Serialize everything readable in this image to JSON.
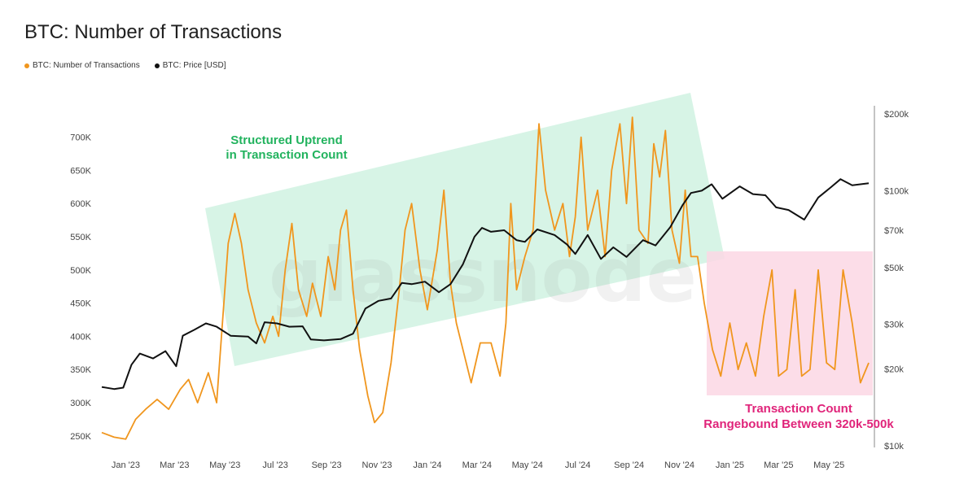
{
  "title": "BTC: Number of Transactions",
  "legend": [
    {
      "label": "BTC: Number of Transactions",
      "color": "#f0961e"
    },
    {
      "label": "BTC: Price [USD]",
      "color": "#111111"
    }
  ],
  "watermark": "glassnode",
  "annotations": {
    "uptrend_line1": "Structured Uptrend",
    "uptrend_line2": "in Transaction Count",
    "range_line1": "Transaction Count",
    "range_line2": "Rangebound Between 320k-500k"
  },
  "chart_data": {
    "type": "line",
    "title": "BTC: Number of Transactions",
    "x_tick_labels": [
      "Jan '23",
      "Mar '23",
      "May '23",
      "Jul '23",
      "Sep '23",
      "Nov '23",
      "Jan '24",
      "Mar '24",
      "May '24",
      "Jul '24",
      "Sep '24",
      "Nov '24",
      "Jan '25",
      "Mar '25",
      "May '25"
    ],
    "y_left_tick_labels": [
      "250K",
      "300K",
      "350K",
      "400K",
      "450K",
      "500K",
      "550K",
      "600K",
      "650K",
      "700K"
    ],
    "y_left_ticks": [
      250000,
      300000,
      350000,
      400000,
      450000,
      500000,
      550000,
      600000,
      650000,
      700000
    ],
    "y_left_range": [
      235000,
      735000
    ],
    "y_right_tick_labels": [
      "$10k",
      "$20k",
      "$30k",
      "$50k",
      "$70k",
      "$100k",
      "$200k"
    ],
    "y_right_ticks": [
      10000,
      20000,
      30000,
      50000,
      70000,
      100000,
      200000
    ],
    "y_right_scale": "log",
    "y_right_range": [
      10000,
      200000
    ],
    "grid": false,
    "legend_position": "top-left",
    "series": [
      {
        "name": "BTC: Number of Transactions",
        "axis": "left",
        "color": "#f0961e",
        "points": [
          [
            "2022-12-10",
            255000
          ],
          [
            "2022-12-25",
            248000
          ],
          [
            "2023-01-08",
            245000
          ],
          [
            "2023-01-20",
            275000
          ],
          [
            "2023-02-01",
            290000
          ],
          [
            "2023-02-15",
            305000
          ],
          [
            "2023-03-01",
            290000
          ],
          [
            "2023-03-15",
            320000
          ],
          [
            "2023-03-25",
            335000
          ],
          [
            "2023-04-05",
            300000
          ],
          [
            "2023-04-18",
            345000
          ],
          [
            "2023-04-28",
            300000
          ],
          [
            "2023-05-05",
            420000
          ],
          [
            "2023-05-12",
            540000
          ],
          [
            "2023-05-20",
            585000
          ],
          [
            "2023-05-28",
            540000
          ],
          [
            "2023-06-05",
            470000
          ],
          [
            "2023-06-15",
            420000
          ],
          [
            "2023-06-25",
            390000
          ],
          [
            "2023-07-05",
            430000
          ],
          [
            "2023-07-12",
            400000
          ],
          [
            "2023-07-20",
            500000
          ],
          [
            "2023-07-28",
            570000
          ],
          [
            "2023-08-05",
            470000
          ],
          [
            "2023-08-15",
            430000
          ],
          [
            "2023-08-22",
            480000
          ],
          [
            "2023-09-01",
            430000
          ],
          [
            "2023-09-10",
            520000
          ],
          [
            "2023-09-18",
            470000
          ],
          [
            "2023-09-25",
            560000
          ],
          [
            "2023-10-02",
            590000
          ],
          [
            "2023-10-10",
            470000
          ],
          [
            "2023-10-18",
            380000
          ],
          [
            "2023-10-28",
            310000
          ],
          [
            "2023-11-05",
            270000
          ],
          [
            "2023-11-15",
            285000
          ],
          [
            "2023-11-25",
            360000
          ],
          [
            "2023-12-05",
            470000
          ],
          [
            "2023-12-12",
            560000
          ],
          [
            "2023-12-20",
            600000
          ],
          [
            "2023-12-30",
            500000
          ],
          [
            "2024-01-08",
            440000
          ],
          [
            "2024-01-20",
            530000
          ],
          [
            "2024-01-28",
            620000
          ],
          [
            "2024-02-05",
            480000
          ],
          [
            "2024-02-12",
            420000
          ],
          [
            "2024-02-20",
            380000
          ],
          [
            "2024-03-01",
            330000
          ],
          [
            "2024-03-12",
            390000
          ],
          [
            "2024-03-25",
            390000
          ],
          [
            "2024-04-05",
            340000
          ],
          [
            "2024-04-12",
            420000
          ],
          [
            "2024-04-18",
            600000
          ],
          [
            "2024-04-25",
            470000
          ],
          [
            "2024-05-05",
            520000
          ],
          [
            "2024-05-15",
            560000
          ],
          [
            "2024-05-22",
            720000
          ],
          [
            "2024-05-30",
            620000
          ],
          [
            "2024-06-10",
            560000
          ],
          [
            "2024-06-20",
            600000
          ],
          [
            "2024-06-28",
            520000
          ],
          [
            "2024-07-05",
            580000
          ],
          [
            "2024-07-12",
            700000
          ],
          [
            "2024-07-20",
            560000
          ],
          [
            "2024-08-01",
            620000
          ],
          [
            "2024-08-10",
            520000
          ],
          [
            "2024-08-18",
            650000
          ],
          [
            "2024-08-28",
            720000
          ],
          [
            "2024-09-05",
            600000
          ],
          [
            "2024-09-12",
            730000
          ],
          [
            "2024-09-20",
            560000
          ],
          [
            "2024-10-01",
            540000
          ],
          [
            "2024-10-08",
            690000
          ],
          [
            "2024-10-15",
            640000
          ],
          [
            "2024-10-22",
            710000
          ],
          [
            "2024-10-30",
            560000
          ],
          [
            "2024-11-08",
            510000
          ],
          [
            "2024-11-15",
            620000
          ],
          [
            "2024-11-22",
            520000
          ],
          [
            "2024-11-30",
            520000
          ],
          [
            "2024-12-08",
            450000
          ],
          [
            "2024-12-18",
            380000
          ],
          [
            "2024-12-28",
            340000
          ],
          [
            "2025-01-08",
            420000
          ],
          [
            "2025-01-18",
            350000
          ],
          [
            "2025-01-28",
            390000
          ],
          [
            "2025-02-08",
            340000
          ],
          [
            "2025-02-18",
            430000
          ],
          [
            "2025-02-28",
            500000
          ],
          [
            "2025-03-08",
            340000
          ],
          [
            "2025-03-18",
            350000
          ],
          [
            "2025-03-28",
            470000
          ],
          [
            "2025-04-05",
            340000
          ],
          [
            "2025-04-15",
            350000
          ],
          [
            "2025-04-25",
            500000
          ],
          [
            "2025-05-05",
            360000
          ],
          [
            "2025-05-15",
            350000
          ],
          [
            "2025-05-25",
            500000
          ],
          [
            "2025-06-05",
            420000
          ],
          [
            "2025-06-15",
            330000
          ],
          [
            "2025-06-25",
            360000
          ]
        ]
      },
      {
        "name": "BTC: Price [USD]",
        "axis": "right",
        "color": "#111111",
        "points": [
          [
            "2022-12-10",
            17000
          ],
          [
            "2022-12-25",
            16700
          ],
          [
            "2023-01-05",
            16900
          ],
          [
            "2023-01-15",
            20800
          ],
          [
            "2023-01-25",
            23000
          ],
          [
            "2023-02-10",
            22000
          ],
          [
            "2023-02-25",
            23500
          ],
          [
            "2023-03-10",
            20500
          ],
          [
            "2023-03-18",
            27000
          ],
          [
            "2023-04-01",
            28500
          ],
          [
            "2023-04-15",
            30200
          ],
          [
            "2023-04-28",
            29300
          ],
          [
            "2023-05-15",
            27000
          ],
          [
            "2023-06-05",
            26800
          ],
          [
            "2023-06-15",
            25200
          ],
          [
            "2023-06-25",
            30500
          ],
          [
            "2023-07-10",
            30200
          ],
          [
            "2023-07-25",
            29300
          ],
          [
            "2023-08-10",
            29400
          ],
          [
            "2023-08-20",
            26100
          ],
          [
            "2023-09-05",
            25900
          ],
          [
            "2023-09-25",
            26200
          ],
          [
            "2023-10-10",
            27500
          ],
          [
            "2023-10-25",
            34500
          ],
          [
            "2023-11-10",
            37000
          ],
          [
            "2023-11-25",
            37800
          ],
          [
            "2023-12-08",
            43500
          ],
          [
            "2023-12-20",
            43000
          ],
          [
            "2024-01-05",
            44000
          ],
          [
            "2024-01-22",
            40000
          ],
          [
            "2024-02-05",
            43000
          ],
          [
            "2024-02-20",
            51500
          ],
          [
            "2024-03-05",
            66000
          ],
          [
            "2024-03-14",
            71500
          ],
          [
            "2024-03-25",
            69000
          ],
          [
            "2024-04-10",
            70000
          ],
          [
            "2024-04-25",
            64000
          ],
          [
            "2024-05-05",
            63000
          ],
          [
            "2024-05-20",
            70500
          ],
          [
            "2024-06-10",
            67000
          ],
          [
            "2024-06-25",
            61500
          ],
          [
            "2024-07-05",
            56500
          ],
          [
            "2024-07-20",
            67000
          ],
          [
            "2024-08-05",
            54000
          ],
          [
            "2024-08-20",
            60000
          ],
          [
            "2024-09-05",
            55000
          ],
          [
            "2024-09-25",
            64000
          ],
          [
            "2024-10-10",
            61000
          ],
          [
            "2024-10-28",
            72000
          ],
          [
            "2024-11-12",
            88000
          ],
          [
            "2024-11-22",
            98000
          ],
          [
            "2024-12-05",
            100000
          ],
          [
            "2024-12-17",
            106000
          ],
          [
            "2024-12-30",
            93000
          ],
          [
            "2025-01-20",
            104000
          ],
          [
            "2025-02-05",
            97000
          ],
          [
            "2025-02-20",
            96000
          ],
          [
            "2025-03-05",
            86000
          ],
          [
            "2025-03-20",
            84000
          ],
          [
            "2025-04-08",
            77000
          ],
          [
            "2025-04-25",
            94000
          ],
          [
            "2025-05-10",
            103000
          ],
          [
            "2025-05-22",
            111000
          ],
          [
            "2025-06-05",
            105000
          ],
          [
            "2025-06-25",
            107000
          ]
        ]
      }
    ]
  }
}
